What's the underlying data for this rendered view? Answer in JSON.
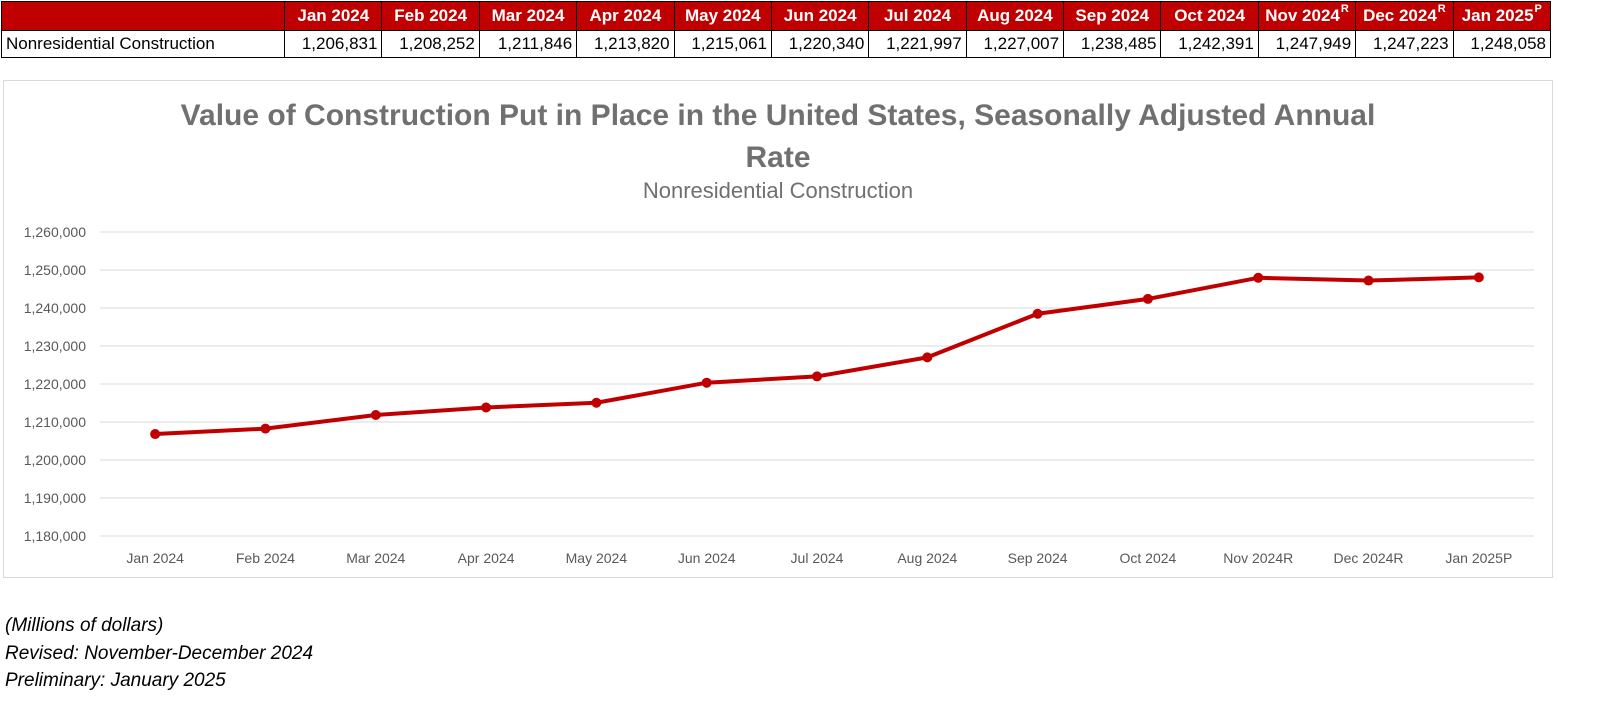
{
  "table": {
    "row_label": "Nonresidential Construction",
    "columns": [
      {
        "label": "Jan 2024",
        "sup": ""
      },
      {
        "label": "Feb 2024",
        "sup": ""
      },
      {
        "label": "Mar 2024",
        "sup": ""
      },
      {
        "label": "Apr 2024",
        "sup": ""
      },
      {
        "label": "May 2024",
        "sup": ""
      },
      {
        "label": "Jun 2024",
        "sup": ""
      },
      {
        "label": "Jul 2024",
        "sup": ""
      },
      {
        "label": "Aug 2024",
        "sup": ""
      },
      {
        "label": "Sep 2024",
        "sup": ""
      },
      {
        "label": "Oct 2024",
        "sup": ""
      },
      {
        "label": "Nov 2024",
        "sup": "R"
      },
      {
        "label": "Dec 2024",
        "sup": "R"
      },
      {
        "label": "Jan 2025",
        "sup": "P"
      }
    ],
    "values": [
      "1,206,831",
      "1,208,252",
      "1,211,846",
      "1,213,820",
      "1,215,061",
      "1,220,340",
      "1,221,997",
      "1,227,007",
      "1,238,485",
      "1,242,391",
      "1,247,949",
      "1,247,223",
      "1,248,058"
    ]
  },
  "chart_data": {
    "type": "line",
    "title": "Value of Construction Put in Place in the United States, Seasonally Adjusted Annual Rate",
    "subtitle": "Nonresidential Construction",
    "categories": [
      "Jan 2024",
      "Feb 2024",
      "Mar 2024",
      "Apr 2024",
      "May 2024",
      "Jun 2024",
      "Jul 2024",
      "Aug 2024",
      "Sep 2024",
      "Oct 2024",
      "Nov 2024R",
      "Dec 2024R",
      "Jan 2025P"
    ],
    "series": [
      {
        "values": [
          1206831,
          1208252,
          1211846,
          1213820,
          1215061,
          1220340,
          1221997,
          1227007,
          1238485,
          1242391,
          1247949,
          1247223,
          1248058
        ],
        "color": "#c00000"
      }
    ],
    "ylim": [
      1180000,
      1260000
    ],
    "yticks": [
      1180000,
      1190000,
      1200000,
      1210000,
      1220000,
      1230000,
      1240000,
      1250000,
      1260000
    ],
    "ytick_labels": [
      "1,180,000",
      "1,190,000",
      "1,200,000",
      "1,210,000",
      "1,220,000",
      "1,230,000",
      "1,240,000",
      "1,250,000",
      "1,260,000"
    ],
    "grid": true,
    "legend": "none"
  },
  "notes": {
    "units": "(Millions of dollars)",
    "revised": "Revised: November-December 2024",
    "preliminary": "Preliminary: January 2025"
  }
}
